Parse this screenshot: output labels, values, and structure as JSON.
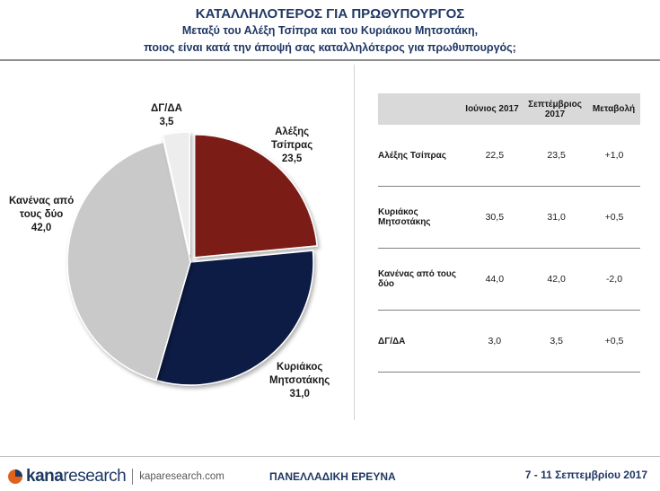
{
  "header": {
    "title": "ΚΑΤΑΛΛΗΛΟΤΕΡΟΣ ΓΙΑ ΠΡΩΘΥΠΟΥΡΓΟΣ",
    "subtitle_line1": "Μεταξύ του Αλέξη Τσίπρα και του Κυριάκου Μητσοτάκη,",
    "subtitle_line2": "ποιος είναι κατά την άποψή σας καταλληλότερος για πρωθυπουργός;"
  },
  "chart_data": {
    "type": "pie",
    "slices": [
      {
        "label_line1": "Αλέξης",
        "label_line2": "Τσίπρας",
        "value": 23.5,
        "value_label": "23,5",
        "color": "#7b1a12"
      },
      {
        "label_line1": "Κυριάκος",
        "label_line2": "Μητσοτάκης",
        "value": 31.0,
        "value_label": "31,0",
        "color": "#0f1b45"
      },
      {
        "label_line1": "Κανένας από",
        "label_line2": "τους δύο",
        "value": 42.0,
        "value_label": "42,0",
        "color": "#c9c9c9"
      },
      {
        "label_line1": "ΔΓ/ΔΑ",
        "label_line2": "",
        "value": 3.5,
        "value_label": "3,5",
        "color": "#ededed"
      }
    ]
  },
  "table": {
    "headers": [
      "",
      "Ιούνιος 2017",
      "Σεπτέμβριος 2017",
      "Μεταβολή"
    ],
    "rows": [
      {
        "name": "Αλέξης Τσίπρας",
        "jun": "22,5",
        "sep": "23,5",
        "change": "+1,0"
      },
      {
        "name": "Κυριάκος Μητσοτάκης",
        "jun": "30,5",
        "sep": "31,0",
        "change": "+0,5"
      },
      {
        "name": "Κανένας από τους δύο",
        "jun": "44,0",
        "sep": "42,0",
        "change": "-2,0"
      },
      {
        "name": "ΔΓ/ΔΑ",
        "jun": "3,0",
        "sep": "3,5",
        "change": "+0,5"
      }
    ]
  },
  "footer": {
    "logo_kana": "kana",
    "logo_research": "research",
    "website": "kaparesearch.com",
    "survey": "ΠΑΝΕΛΛΑΔΙΚΗ ΕΡΕΥΝΑ",
    "date": "7 - 11 Σεπτεμβρίου 2017"
  }
}
